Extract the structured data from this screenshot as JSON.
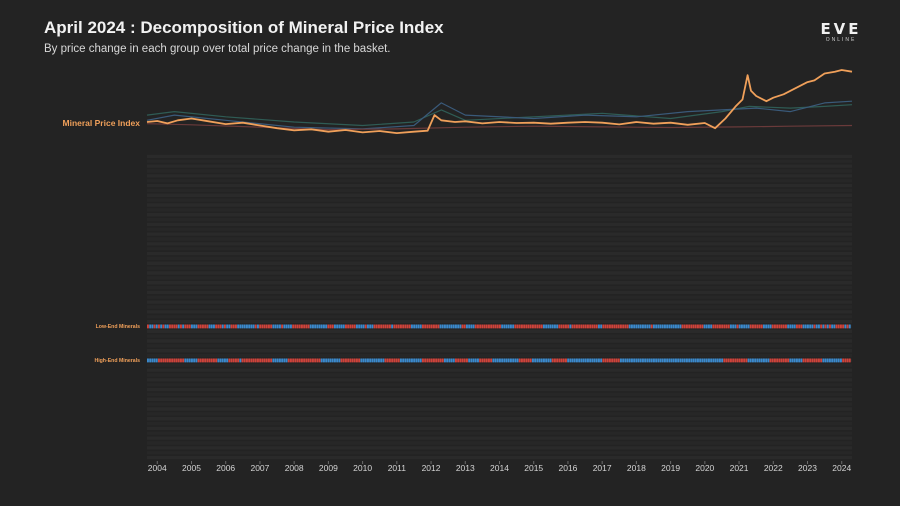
{
  "header": {
    "title": "April 2024 : Decomposition of Mineral Price Index",
    "subtitle": "By price change in each group over total price change in the basket.",
    "logo_text": "EVE",
    "logo_sub": "ONLINE"
  },
  "colors": {
    "background": "#232323",
    "index_line": "#f0a05a",
    "highlight_label": "#f0a05a",
    "increase": "#d9443c",
    "decrease": "#3c8fd6",
    "neutral": "#4a4a4a",
    "row_label": "#5a4a33"
  },
  "chart_data": [
    {
      "type": "line",
      "title": "",
      "series_label": "Mineral Price Index",
      "x_ticks": [
        "2004",
        "2005",
        "2006",
        "2007",
        "2008",
        "2009",
        "2010",
        "2011",
        "2012",
        "2013",
        "2014",
        "2015",
        "2016",
        "2017",
        "2018",
        "2019",
        "2020",
        "2021",
        "2022",
        "2023",
        "2024"
      ],
      "x_range": [
        2003.7,
        2024.3
      ],
      "series": [
        {
          "name": "Mineral Price Index",
          "color": "#f0a05a",
          "x": [
            2003.7,
            2004.0,
            2004.3,
            2004.6,
            2005.0,
            2005.5,
            2006.0,
            2006.5,
            2007.0,
            2007.5,
            2008.0,
            2008.5,
            2009.0,
            2009.5,
            2010.0,
            2010.5,
            2011.0,
            2011.5,
            2011.9,
            2012.1,
            2012.3,
            2012.7,
            2013.0,
            2013.5,
            2014.0,
            2014.5,
            2015.0,
            2015.5,
            2016.0,
            2016.5,
            2017.0,
            2017.5,
            2018.0,
            2018.5,
            2019.0,
            2019.5,
            2020.0,
            2020.3,
            2020.6,
            2020.9,
            2021.1,
            2021.25,
            2021.35,
            2021.5,
            2021.8,
            2022.0,
            2022.3,
            2022.6,
            2023.0,
            2023.2,
            2023.5,
            2023.8,
            2024.0,
            2024.3
          ],
          "y": [
            1.0,
            1.03,
            0.96,
            1.05,
            1.1,
            1.02,
            0.94,
            0.98,
            0.9,
            0.82,
            0.76,
            0.79,
            0.72,
            0.77,
            0.7,
            0.74,
            0.68,
            0.72,
            0.75,
            1.2,
            1.05,
            1.0,
            1.02,
            0.96,
            1.0,
            0.97,
            0.98,
            0.95,
            0.98,
            1.0,
            0.98,
            0.93,
            1.0,
            0.95,
            0.98,
            0.92,
            0.97,
            0.82,
            1.1,
            1.45,
            1.65,
            2.35,
            1.9,
            1.75,
            1.6,
            1.7,
            1.8,
            1.95,
            2.15,
            2.2,
            2.4,
            2.45,
            2.5,
            2.45
          ]
        },
        {
          "name": "",
          "color": "#2f5c55",
          "x": [
            2003.7,
            2004.5,
            2006.0,
            2008.0,
            2010.0,
            2011.5,
            2012.3,
            2013.0,
            2015.0,
            2017.0,
            2019.0,
            2020.5,
            2021.3,
            2022.5,
            2023.5,
            2024.3
          ],
          "y": [
            1.2,
            1.3,
            1.15,
            1.0,
            0.9,
            1.0,
            1.35,
            1.05,
            1.15,
            1.25,
            1.1,
            1.3,
            1.45,
            1.4,
            1.45,
            1.5
          ]
        },
        {
          "name": "",
          "color": "#3a5a7a",
          "x": [
            2003.7,
            2004.5,
            2006.0,
            2008.0,
            2010.0,
            2011.5,
            2012.3,
            2013.0,
            2015.0,
            2016.5,
            2018.0,
            2019.5,
            2020.5,
            2021.5,
            2022.5,
            2023.5,
            2024.3
          ],
          "y": [
            1.05,
            1.2,
            1.05,
            0.85,
            0.8,
            0.9,
            1.55,
            1.2,
            1.1,
            1.2,
            1.15,
            1.3,
            1.35,
            1.4,
            1.3,
            1.55,
            1.6
          ]
        },
        {
          "name": "",
          "color": "#6a3a3a",
          "x": [
            2003.7,
            2005.0,
            2007.0,
            2009.0,
            2011.0,
            2013.0,
            2015.0,
            2017.0,
            2019.0,
            2021.0,
            2022.5,
            2024.3
          ],
          "y": [
            0.95,
            0.92,
            0.85,
            0.78,
            0.8,
            0.85,
            0.88,
            0.86,
            0.84,
            0.86,
            0.88,
            0.9
          ]
        }
      ]
    },
    {
      "type": "heatmap",
      "title": "",
      "years": [
        2004,
        2024
      ],
      "rows": [
        {
          "label": "",
          "highlight": false
        },
        {
          "label": "",
          "highlight": false
        },
        {
          "label": "",
          "highlight": false
        },
        {
          "label": "",
          "highlight": false
        },
        {
          "label": "",
          "highlight": false
        },
        {
          "label": "",
          "highlight": false
        },
        {
          "label": "",
          "highlight": false
        },
        {
          "label": "",
          "highlight": false
        },
        {
          "label": "",
          "highlight": false
        },
        {
          "label": "",
          "highlight": false
        },
        {
          "label": "",
          "highlight": false
        },
        {
          "label": "",
          "highlight": false
        },
        {
          "label": "",
          "highlight": false
        },
        {
          "label": "",
          "highlight": false
        },
        {
          "label": "",
          "highlight": false
        },
        {
          "label": "",
          "highlight": false
        },
        {
          "label": "",
          "highlight": false
        },
        {
          "label": "",
          "highlight": false
        },
        {
          "label": "",
          "highlight": false
        },
        {
          "label": "",
          "highlight": false
        },
        {
          "label": "",
          "highlight": false
        },
        {
          "label": "",
          "highlight": false
        },
        {
          "label": "",
          "highlight": false
        },
        {
          "label": "",
          "highlight": false
        },
        {
          "label": "",
          "highlight": false
        },
        {
          "label": "",
          "highlight": false
        },
        {
          "label": "",
          "highlight": false
        },
        {
          "label": "",
          "highlight": false
        },
        {
          "label": "",
          "highlight": false
        },
        {
          "label": "",
          "highlight": false
        },
        {
          "label": "",
          "highlight": false
        },
        {
          "label": "",
          "highlight": false
        },
        {
          "label": "",
          "highlight": false
        },
        {
          "label": "",
          "highlight": false
        },
        {
          "label": "",
          "highlight": false
        },
        {
          "label": "Low-End Minerals",
          "highlight": true
        },
        {
          "label": "",
          "highlight": false
        },
        {
          "label": "",
          "highlight": false
        },
        {
          "label": "",
          "highlight": false
        },
        {
          "label": "",
          "highlight": false
        },
        {
          "label": "",
          "highlight": false
        },
        {
          "label": "",
          "highlight": false
        },
        {
          "label": "High-End Minerals",
          "highlight": true
        },
        {
          "label": "",
          "highlight": false
        },
        {
          "label": "",
          "highlight": false
        },
        {
          "label": "",
          "highlight": false
        },
        {
          "label": "",
          "highlight": false
        },
        {
          "label": "",
          "highlight": false
        },
        {
          "label": "",
          "highlight": false
        },
        {
          "label": "",
          "highlight": false
        },
        {
          "label": "",
          "highlight": false
        },
        {
          "label": "",
          "highlight": false
        },
        {
          "label": "",
          "highlight": false
        },
        {
          "label": "",
          "highlight": false
        },
        {
          "label": "",
          "highlight": false
        },
        {
          "label": "",
          "highlight": false
        },
        {
          "label": "",
          "highlight": false
        },
        {
          "label": "",
          "highlight": false
        },
        {
          "label": "",
          "highlight": false
        },
        {
          "label": "",
          "highlight": false
        },
        {
          "label": "",
          "highlight": false
        },
        {
          "label": "",
          "highlight": false
        },
        {
          "label": "",
          "highlight": false
        }
      ],
      "highlight_values": {
        "Low-End Minerals": "RBBRBRBRBBRRRRBRBRRRBBBRRRRRBBBRRRBRBBRRRBBBBBBBBRBRRRRRRBBBBRBBBBRRRRRRRRBBBBBBBBRRRBBBBBRRRRRBBBBRBBBRRRRRRRRBRRRRRRRRBBBBBRRRRRRRRBBBBBBBBBBRRBBBBRRRRRRRRRRRRBBBBBBRRRRRRRRRRRRRBBBBBBBRRRRRBRRRRRRRRRRRRBBRRRRRRRRRRRRBBBBBBBBBBRBBBBBBBBBBBBBRRRRRRRRRRBBBBRRRRRRRRBBBRBBBBBRRRRRRBBBBRRRRRRRBBBBRRRBBBBB",
        "High-End Minerals": "BBBBBRRRRRRRRRRRRBBBBBBRRRRRRRRRBBBBBRRRRRBRRRRRRRRRRRRRRBBBBBBBRRRRRRRRRRRRRRRBBBBBBBBBRRRRRRRRRBBBBBBBBBBBRRRRRRRBBBBBBBBBBRRRRRRRRRRBBBBBRRRRRRBBBBBRRRRRRBBBBBBBBBBBBRRRRRRBBBBBBBBBRRRRRRRBBBBBBBBBBBBBBBBRRRRRRRRBBBBBBBBBBBBBBBBBBBBBBBBBBBBBBBBBBBBBBBBBBBBBBBRRRRRRRRRRRBBBBBBBBBBRRRRRRRRRBBBBBBRRRRRRRRRBBBB"
      }
    }
  ]
}
